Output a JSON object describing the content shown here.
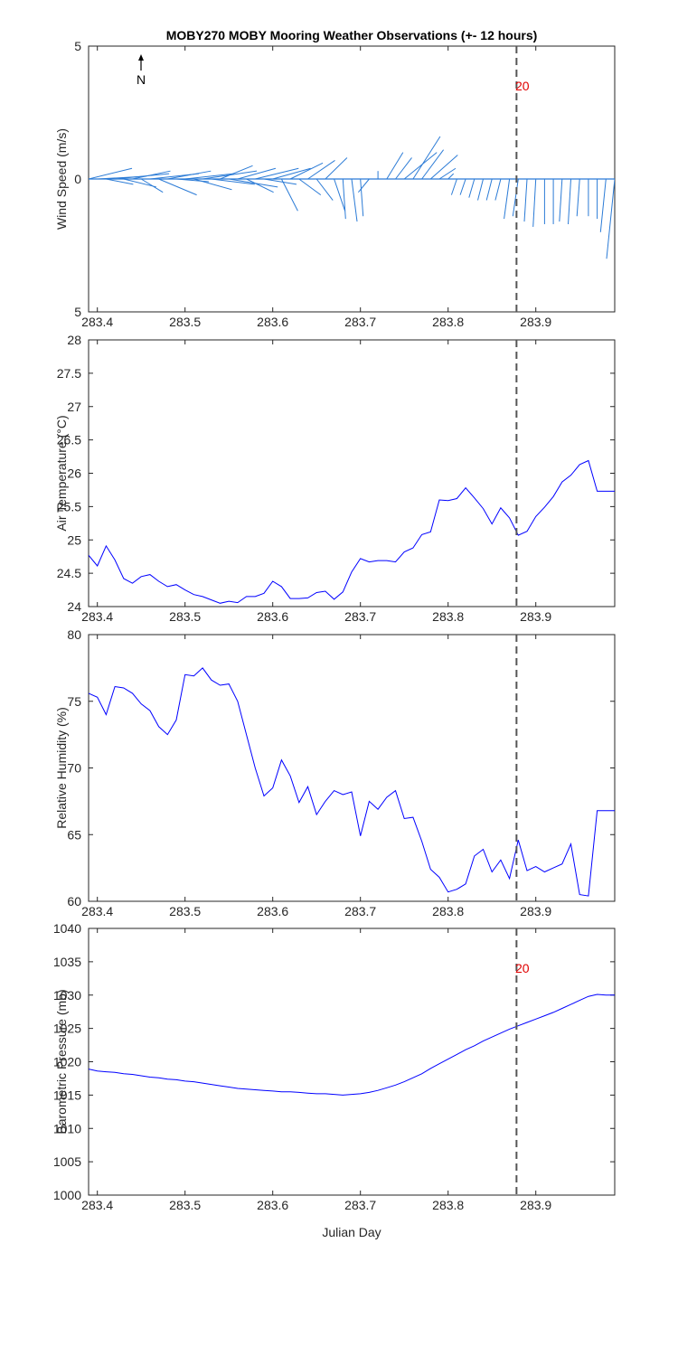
{
  "figure": {
    "title": "MOBY270 MOBY Mooring Weather Observations (+- 12 hours)",
    "xlabel": "Julian Day",
    "north_label": "N",
    "marker_label": "20"
  },
  "colors": {
    "wind": "#2b7bd6",
    "series": "#0000ff",
    "marker_line": "#555555",
    "marker_label": "#e00000",
    "axis": "#262626"
  },
  "chart_data": [
    {
      "type": "quiver",
      "name": "wind",
      "ylabel": "Wind Speed (m/s)",
      "xlim": [
        283.39,
        283.99
      ],
      "ylim": [
        -5,
        5
      ],
      "yticks": [
        "5",
        "0",
        "5"
      ],
      "xticks": [
        283.4,
        283.5,
        283.6,
        283.7,
        283.8,
        283.9
      ],
      "marker_x": 283.878,
      "x": [
        283.39,
        283.4,
        283.41,
        283.42,
        283.43,
        283.44,
        283.45,
        283.46,
        283.47,
        283.48,
        283.49,
        283.5,
        283.51,
        283.52,
        283.53,
        283.54,
        283.55,
        283.56,
        283.57,
        283.58,
        283.59,
        283.6,
        283.61,
        283.62,
        283.63,
        283.64,
        283.65,
        283.66,
        283.67,
        283.68,
        283.69,
        283.7,
        283.71,
        283.72,
        283.73,
        283.74,
        283.75,
        283.76,
        283.77,
        283.78,
        283.79,
        283.8,
        283.81,
        283.82,
        283.83,
        283.84,
        283.85,
        283.86,
        283.87,
        283.88,
        283.89,
        283.9,
        283.91,
        283.92,
        283.93,
        283.94,
        283.95,
        283.96,
        283.97,
        283.98,
        283.99
      ],
      "u": [
        0.8,
        0.9,
        0.5,
        1.0,
        0.6,
        0.7,
        0.4,
        0.9,
        0.7,
        0.8,
        0.6,
        0.9,
        0.7,
        1.0,
        0.8,
        0.6,
        0.9,
        0.7,
        0.5,
        0.8,
        0.6,
        0.7,
        0.3,
        0.6,
        0.4,
        0.5,
        0.3,
        0.4,
        0.2,
        0.05,
        0.1,
        0.05,
        -0.2,
        0.0,
        0.3,
        0.3,
        0.6,
        0.5,
        0.4,
        0.5,
        0.3,
        0.1,
        -0.1,
        -0.1,
        -0.1,
        -0.1,
        -0.1,
        -0.1,
        -0.1,
        -0.1,
        -0.05,
        -0.05,
        0.0,
        0.0,
        -0.05,
        -0.05,
        -0.05,
        0.0,
        0.0,
        -0.1,
        -0.15
      ],
      "v": [
        0.4,
        0.1,
        -0.2,
        0.2,
        -0.3,
        0.3,
        -0.5,
        0.2,
        -0.6,
        0.3,
        -0.1,
        0.2,
        -0.4,
        0.3,
        -0.2,
        0.5,
        -0.3,
        0.4,
        -0.5,
        0.4,
        -0.2,
        0.4,
        -1.2,
        0.6,
        -0.6,
        0.7,
        -0.8,
        0.8,
        -1.2,
        -1.5,
        -1.6,
        -1.4,
        -0.5,
        0.3,
        1.0,
        0.8,
        1.0,
        1.6,
        1.1,
        0.9,
        0.4,
        0.2,
        -0.6,
        -0.6,
        -0.7,
        -0.8,
        -0.8,
        -0.8,
        -1.5,
        -1.4,
        -1.6,
        -1.8,
        -1.7,
        -1.7,
        -1.6,
        -1.7,
        -1.4,
        -1.4,
        -1.5,
        -2.0,
        -3.0
      ]
    },
    {
      "type": "line",
      "name": "air-temperature",
      "ylabel": "Air Temperature (°C)",
      "xlim": [
        283.39,
        283.99
      ],
      "ylim": [
        24,
        28
      ],
      "yticks": [
        "24",
        "24.5",
        "25",
        "25.5",
        "26",
        "26.5",
        "27",
        "27.5",
        "28"
      ],
      "xticks": [
        283.4,
        283.5,
        283.6,
        283.7,
        283.8,
        283.9
      ],
      "marker_x": 283.878,
      "x": [
        283.39,
        283.4,
        283.41,
        283.42,
        283.43,
        283.44,
        283.45,
        283.46,
        283.47,
        283.48,
        283.49,
        283.5,
        283.51,
        283.52,
        283.53,
        283.54,
        283.55,
        283.56,
        283.57,
        283.58,
        283.59,
        283.6,
        283.61,
        283.62,
        283.63,
        283.64,
        283.65,
        283.66,
        283.67,
        283.68,
        283.69,
        283.7,
        283.71,
        283.72,
        283.73,
        283.74,
        283.75,
        283.76,
        283.77,
        283.78,
        283.79,
        283.8,
        283.81,
        283.82,
        283.83,
        283.84,
        283.85,
        283.86,
        283.87,
        283.88,
        283.89,
        283.9,
        283.91,
        283.92,
        283.93,
        283.94,
        283.95,
        283.96,
        283.97,
        283.98,
        283.99
      ],
      "y": [
        24.77,
        24.61,
        24.91,
        24.7,
        24.42,
        24.35,
        24.45,
        24.48,
        24.38,
        24.3,
        24.33,
        24.25,
        24.18,
        24.15,
        24.1,
        24.05,
        24.08,
        24.06,
        24.15,
        24.15,
        24.2,
        24.38,
        24.3,
        24.12,
        24.12,
        24.13,
        24.21,
        24.23,
        24.11,
        24.22,
        24.52,
        24.72,
        24.67,
        24.69,
        24.69,
        24.67,
        24.82,
        24.88,
        25.08,
        25.12,
        25.6,
        25.59,
        25.62,
        25.78,
        25.63,
        25.47,
        25.24,
        25.48,
        25.33,
        25.07,
        25.13,
        25.35,
        25.49,
        25.65,
        25.87,
        25.97,
        26.13,
        26.19,
        25.73,
        25.73,
        25.73
      ]
    },
    {
      "type": "line",
      "name": "relative-humidity",
      "ylabel": "Relative Humidity (%)",
      "xlim": [
        283.39,
        283.99
      ],
      "ylim": [
        60,
        80
      ],
      "yticks": [
        "60",
        "65",
        "70",
        "75",
        "80"
      ],
      "xticks": [
        283.4,
        283.5,
        283.6,
        283.7,
        283.8,
        283.9
      ],
      "marker_x": 283.878,
      "x": [
        283.39,
        283.4,
        283.41,
        283.42,
        283.43,
        283.44,
        283.45,
        283.46,
        283.47,
        283.48,
        283.49,
        283.5,
        283.51,
        283.52,
        283.53,
        283.54,
        283.55,
        283.56,
        283.57,
        283.58,
        283.59,
        283.6,
        283.61,
        283.62,
        283.63,
        283.64,
        283.65,
        283.66,
        283.67,
        283.68,
        283.69,
        283.7,
        283.71,
        283.72,
        283.73,
        283.74,
        283.75,
        283.76,
        283.77,
        283.78,
        283.79,
        283.8,
        283.81,
        283.82,
        283.83,
        283.84,
        283.85,
        283.86,
        283.87,
        283.88,
        283.89,
        283.9,
        283.91,
        283.92,
        283.93,
        283.94,
        283.95,
        283.96,
        283.97,
        283.98,
        283.99
      ],
      "y": [
        75.6,
        75.3,
        74.0,
        76.1,
        76.0,
        75.6,
        74.8,
        74.3,
        73.1,
        72.5,
        73.6,
        77.0,
        76.9,
        77.5,
        76.6,
        76.2,
        76.3,
        75.0,
        72.5,
        70.0,
        67.9,
        68.5,
        70.6,
        69.4,
        67.4,
        68.6,
        66.5,
        67.5,
        68.3,
        68.0,
        68.2,
        64.9,
        67.5,
        66.9,
        67.8,
        68.3,
        66.2,
        66.3,
        64.5,
        62.4,
        61.8,
        60.7,
        60.9,
        61.3,
        63.4,
        63.9,
        62.2,
        63.1,
        61.7,
        64.6,
        62.3,
        62.6,
        62.2,
        62.5,
        62.8,
        64.3,
        60.5,
        60.4,
        66.8,
        66.8,
        66.8
      ]
    },
    {
      "type": "line",
      "name": "barometric-pressure",
      "ylabel": "Barometric Pressure (mb)",
      "xlim": [
        283.39,
        283.99
      ],
      "ylim": [
        1000,
        1040
      ],
      "yticks": [
        "1000",
        "1005",
        "1010",
        "1015",
        "1020",
        "1025",
        "1030",
        "1035",
        "1040"
      ],
      "xticks": [
        283.4,
        283.5,
        283.6,
        283.7,
        283.8,
        283.9
      ],
      "marker_x": 283.878,
      "x": [
        283.39,
        283.4,
        283.41,
        283.42,
        283.43,
        283.44,
        283.45,
        283.46,
        283.47,
        283.48,
        283.49,
        283.5,
        283.51,
        283.52,
        283.53,
        283.54,
        283.55,
        283.56,
        283.57,
        283.58,
        283.59,
        283.6,
        283.61,
        283.62,
        283.63,
        283.64,
        283.65,
        283.66,
        283.67,
        283.68,
        283.69,
        283.7,
        283.71,
        283.72,
        283.73,
        283.74,
        283.75,
        283.76,
        283.77,
        283.78,
        283.79,
        283.8,
        283.81,
        283.82,
        283.83,
        283.84,
        283.85,
        283.86,
        283.87,
        283.88,
        283.89,
        283.9,
        283.91,
        283.92,
        283.93,
        283.94,
        283.95,
        283.96,
        283.97,
        283.98,
        283.99
      ],
      "y": [
        1018.9,
        1018.6,
        1018.5,
        1018.4,
        1018.2,
        1018.1,
        1017.9,
        1017.7,
        1017.6,
        1017.4,
        1017.3,
        1017.1,
        1017.0,
        1016.8,
        1016.6,
        1016.4,
        1016.2,
        1016.0,
        1015.9,
        1015.8,
        1015.7,
        1015.6,
        1015.5,
        1015.5,
        1015.4,
        1015.3,
        1015.2,
        1015.2,
        1015.1,
        1015.0,
        1015.1,
        1015.2,
        1015.4,
        1015.7,
        1016.1,
        1016.5,
        1017.0,
        1017.6,
        1018.2,
        1019.0,
        1019.7,
        1020.4,
        1021.1,
        1021.8,
        1022.4,
        1023.1,
        1023.7,
        1024.3,
        1024.9,
        1025.4,
        1025.9,
        1026.4,
        1026.9,
        1027.4,
        1028.0,
        1028.6,
        1029.2,
        1029.8,
        1030.1,
        1030.0,
        1030.0
      ]
    }
  ]
}
